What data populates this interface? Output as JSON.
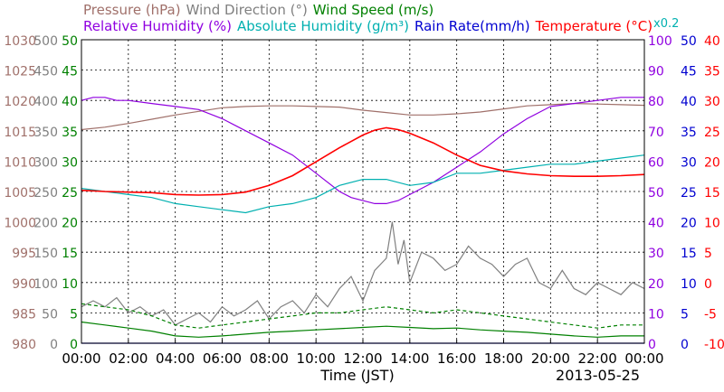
{
  "chart_data": {
    "type": "line",
    "legend": {
      "row1": [
        {
          "name": "Pressure (hPa)",
          "color": "#a0706a"
        },
        {
          "name": "Wind Direction (°)",
          "color": "#808080"
        },
        {
          "name": "Wind Speed (m/s)",
          "color": "#008000"
        }
      ],
      "row2": [
        {
          "name": "Relative Humidity (%)",
          "color": "#9000e0"
        },
        {
          "name": "Absolute Humidity (g/m³)",
          "color": "#00b0b0"
        },
        {
          "name": "Rain Rate(mm/h)",
          "color": "#0000d0"
        },
        {
          "name": "Temperature (°C)",
          "color": "#ff0000"
        }
      ]
    },
    "multiplier_label": "x0.2",
    "xlabel": "Time (JST)",
    "date": "2013-05-25",
    "x_ticks": [
      "00:00",
      "02:00",
      "04:00",
      "06:00",
      "08:00",
      "10:00",
      "12:00",
      "14:00",
      "16:00",
      "18:00",
      "20:00",
      "22:00",
      "00:00"
    ],
    "axes": {
      "pressure": {
        "color": "#a0706a",
        "ylim": [
          980,
          1030
        ],
        "ticks": [
          "980",
          "985",
          "990",
          "995",
          "1000",
          "1005",
          "1010",
          "1015",
          "1020",
          "1025",
          "1030"
        ]
      },
      "wind_direction": {
        "color": "#808080",
        "ylim": [
          0,
          500
        ],
        "ticks": [
          "0",
          "50",
          "100",
          "150",
          "200",
          "250",
          "300",
          "350",
          "400",
          "450",
          "500"
        ]
      },
      "wind_speed": {
        "color": "#008000",
        "ylim": [
          0,
          50
        ],
        "ticks": [
          "0",
          "5",
          "10",
          "15",
          "20",
          "25",
          "30",
          "35",
          "40",
          "45",
          "50"
        ]
      },
      "humidity": {
        "color": "#9000e0",
        "ylim": [
          0,
          100
        ],
        "ticks": [
          "0",
          "10",
          "20",
          "30",
          "40",
          "50",
          "60",
          "70",
          "80",
          "90",
          "100"
        ]
      },
      "rain_rate": {
        "color": "#0000d0",
        "ylim": [
          0,
          50
        ],
        "ticks": [
          "0",
          "5",
          "10",
          "15",
          "20",
          "25",
          "30",
          "35",
          "40",
          "45",
          "50"
        ]
      },
      "temperature": {
        "color": "#ff0000",
        "ylim": [
          -10,
          40
        ],
        "ticks": [
          "-10",
          "-5",
          "0",
          "5",
          "10",
          "15",
          "20",
          "25",
          "30",
          "35",
          "40"
        ]
      }
    },
    "grid": true,
    "series": [
      {
        "key": "pressure",
        "name": "Pressure (hPa)",
        "color": "#a0706a",
        "axis": "pressure",
        "x": [
          0,
          1,
          2,
          3,
          4,
          5,
          6,
          7,
          8,
          9,
          10,
          11,
          12,
          13,
          14,
          15,
          16,
          17,
          18,
          19,
          20,
          21,
          22,
          23,
          24
        ],
        "y": [
          1015.2,
          1015.6,
          1016.2,
          1016.9,
          1017.6,
          1018.2,
          1018.8,
          1019.0,
          1019.1,
          1019.1,
          1019.0,
          1018.9,
          1018.4,
          1018.0,
          1017.6,
          1017.6,
          1017.8,
          1018.1,
          1018.6,
          1019.1,
          1019.3,
          1019.5,
          1019.4,
          1019.3,
          1019.2
        ]
      },
      {
        "key": "relative_humidity",
        "name": "Relative Humidity (%)",
        "color": "#9000e0",
        "axis": "humidity",
        "x": [
          0,
          0.5,
          1,
          1.5,
          2,
          3,
          4,
          5,
          6,
          7,
          8,
          9,
          10,
          11,
          11.5,
          12,
          12.5,
          13,
          13.5,
          14,
          15,
          16,
          17,
          18,
          19,
          20,
          21,
          22,
          23,
          24
        ],
        "y": [
          80,
          81,
          81,
          80,
          80,
          79,
          78,
          77,
          74,
          70,
          66,
          62,
          56,
          50,
          48,
          47,
          46,
          46,
          47,
          49,
          53,
          58,
          63,
          69,
          74,
          78,
          79,
          80,
          81,
          81
        ]
      },
      {
        "key": "absolute_humidity",
        "name": "Absolute Humidity (g/m³)",
        "color": "#00b0b0",
        "axis": "humidity",
        "x": [
          0,
          1,
          2,
          3,
          4,
          5,
          6,
          7,
          8,
          9,
          10,
          11,
          12,
          13,
          14,
          15,
          16,
          17,
          18,
          19,
          20,
          21,
          22,
          23,
          24
        ],
        "y": [
          51,
          50,
          49,
          48,
          46,
          45,
          44,
          43,
          45,
          46,
          48,
          52,
          54,
          54,
          52,
          53,
          56,
          56,
          57,
          58,
          59,
          59,
          60,
          61,
          62
        ]
      },
      {
        "key": "temperature",
        "name": "Temperature (°C)",
        "color": "#ff0000",
        "axis": "temperature",
        "x": [
          0,
          1,
          2,
          3,
          4,
          5,
          6,
          7,
          8,
          9,
          10,
          11,
          12,
          12.5,
          13,
          13.5,
          14,
          15,
          16,
          17,
          18,
          19,
          20,
          21,
          22,
          23,
          24
        ],
        "y": [
          15.2,
          15.0,
          14.9,
          14.8,
          14.5,
          14.4,
          14.5,
          14.9,
          16.0,
          17.6,
          19.9,
          22.2,
          24.3,
          25.1,
          25.5,
          25.2,
          24.6,
          23.0,
          21.0,
          19.3,
          18.4,
          17.9,
          17.6,
          17.5,
          17.5,
          17.6,
          17.8
        ]
      },
      {
        "key": "wind_direction",
        "name": "Wind Direction (°)",
        "color": "#808080",
        "axis": "wind_direction",
        "x": [
          0,
          0.5,
          1,
          1.5,
          2,
          2.5,
          3,
          3.5,
          4,
          4.5,
          5,
          5.5,
          6,
          6.5,
          7,
          7.5,
          8,
          8.5,
          9,
          9.5,
          10,
          10.5,
          11,
          11.5,
          12,
          12.5,
          13,
          13.25,
          13.5,
          13.75,
          14,
          14.5,
          15,
          15.5,
          16,
          16.5,
          17,
          17.5,
          18,
          18.5,
          19,
          19.5,
          20,
          20.5,
          21,
          21.5,
          22,
          22.5,
          23,
          23.5,
          24
        ],
        "y": [
          60,
          70,
          60,
          75,
          50,
          60,
          45,
          55,
          30,
          40,
          50,
          35,
          60,
          45,
          55,
          70,
          40,
          60,
          70,
          50,
          80,
          60,
          90,
          110,
          70,
          120,
          140,
          200,
          130,
          170,
          100,
          150,
          140,
          120,
          130,
          160,
          140,
          130,
          110,
          130,
          140,
          100,
          90,
          120,
          90,
          80,
          100,
          90,
          80,
          100,
          90
        ]
      },
      {
        "key": "wind_speed_max",
        "name": "Wind Speed (m/s)",
        "color": "#008000",
        "axis": "wind_speed",
        "x": [
          0,
          1,
          2,
          3,
          4,
          5,
          6,
          7,
          8,
          9,
          10,
          11,
          12,
          13,
          14,
          15,
          16,
          17,
          18,
          19,
          20,
          21,
          22,
          23,
          24
        ],
        "y": [
          6.5,
          6.0,
          5.5,
          4.5,
          3.0,
          2.5,
          3.0,
          3.5,
          4.0,
          4.5,
          5.0,
          5.0,
          5.5,
          6.0,
          5.5,
          5.0,
          5.5,
          5.0,
          4.5,
          4.0,
          3.5,
          3.0,
          2.5,
          3.0,
          3.0
        ]
      },
      {
        "key": "wind_speed_avg",
        "name": "Wind Speed (m/s)",
        "color": "#008000",
        "axis": "wind_speed",
        "x": [
          0,
          1,
          2,
          3,
          4,
          5,
          6,
          7,
          8,
          9,
          10,
          11,
          12,
          13,
          14,
          15,
          16,
          17,
          18,
          19,
          20,
          21,
          22,
          23,
          24
        ],
        "y": [
          3.5,
          3.0,
          2.5,
          2.0,
          1.2,
          1.0,
          1.2,
          1.5,
          1.8,
          2.0,
          2.2,
          2.4,
          2.6,
          2.8,
          2.6,
          2.4,
          2.5,
          2.2,
          2.0,
          1.8,
          1.5,
          1.2,
          1.0,
          1.2,
          1.2
        ]
      },
      {
        "key": "rain_rate",
        "name": "Rain Rate(mm/h)",
        "color": "#0000d0",
        "axis": "rain_rate",
        "x": [
          0,
          24
        ],
        "y": [
          0,
          0
        ]
      }
    ]
  }
}
